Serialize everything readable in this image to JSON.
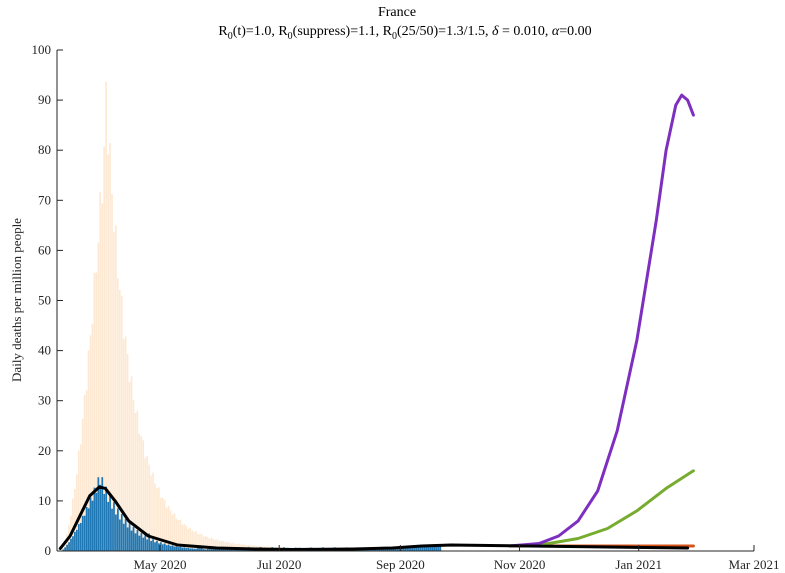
{
  "chart_data": {
    "type": "bar",
    "title": "France",
    "subtitle": {
      "r0t": "R",
      "r0t_sub": "0",
      "r0t_rest": "(t)=1.0,  ",
      "r0s": "R",
      "r0s_sub": "0",
      "r0s_rest": "(suppress)=1.1,  ",
      "r0f": "R",
      "r0f_sub": "0",
      "r0f_rest": "(25/50)=1.3/1.5,  ",
      "delta_sym": "δ",
      "delta_rest": " = 0.010, ",
      "alpha_sym": "α",
      "alpha_rest": "=0.00"
    },
    "ylabel": "Daily deaths per million people",
    "xlabel": "",
    "ylim": [
      0,
      100
    ],
    "xlim_days": [
      0,
      330
    ],
    "yticks": [
      "0",
      "10",
      "20",
      "30",
      "40",
      "50",
      "60",
      "70",
      "80",
      "90",
      "100"
    ],
    "xticks": [
      {
        "day": 51,
        "label": "May 2020"
      },
      {
        "day": 112,
        "label": "Jul 2020"
      },
      {
        "day": 174,
        "label": "Sep 2020"
      },
      {
        "day": 235,
        "label": "Nov 2020"
      },
      {
        "day": 296,
        "label": "Jan 2021"
      },
      {
        "day": 355,
        "label": "Mar 2021"
      }
    ],
    "colors": {
      "background_bars": "#fde9d3",
      "observed_bars": "#1f77b4",
      "fit": "#000000",
      "scenario_high": "#7e2fbf",
      "scenario_mid": "#77ac30",
      "scenario_low": "#d95319"
    },
    "background_bars_peak": {
      "day": 23,
      "value": 85
    },
    "observed_bars_peak": {
      "day": 20,
      "value": 14.5
    },
    "series": [
      {
        "type": "bar",
        "color_key": "background_bars",
        "start_day": 0,
        "end_day": 120
      },
      {
        "type": "bar",
        "color_key": "observed_bars",
        "start_day": 0,
        "end_day": 194
      },
      {
        "type": "line",
        "color_key": "fit",
        "points": [
          [
            0,
            0.5
          ],
          [
            5,
            3
          ],
          [
            10,
            7
          ],
          [
            15,
            11
          ],
          [
            20,
            12.8
          ],
          [
            23,
            12.5
          ],
          [
            28,
            10
          ],
          [
            35,
            6
          ],
          [
            45,
            3
          ],
          [
            60,
            1.2
          ],
          [
            80,
            0.6
          ],
          [
            100,
            0.4
          ],
          [
            120,
            0.3
          ],
          [
            150,
            0.4
          ],
          [
            170,
            0.6
          ],
          [
            185,
            1.0
          ],
          [
            200,
            1.2
          ],
          [
            220,
            1.1
          ],
          [
            240,
            1.0
          ],
          [
            260,
            0.9
          ],
          [
            280,
            0.8
          ],
          [
            300,
            0.7
          ],
          [
            321,
            0.6
          ]
        ]
      },
      {
        "type": "line",
        "color_key": "scenario_high",
        "points": [
          [
            230,
            1.0
          ],
          [
            245,
            1.5
          ],
          [
            255,
            3
          ],
          [
            265,
            6
          ],
          [
            275,
            12
          ],
          [
            285,
            24
          ],
          [
            295,
            42
          ],
          [
            305,
            66
          ],
          [
            310,
            80
          ],
          [
            315,
            89
          ],
          [
            318,
            91
          ],
          [
            321,
            90
          ],
          [
            324,
            87
          ]
        ]
      },
      {
        "type": "line",
        "color_key": "scenario_mid",
        "points": [
          [
            230,
            1.0
          ],
          [
            250,
            1.5
          ],
          [
            265,
            2.5
          ],
          [
            280,
            4.5
          ],
          [
            295,
            8
          ],
          [
            310,
            12.5
          ],
          [
            324,
            16
          ]
        ]
      },
      {
        "type": "line",
        "color_key": "scenario_low",
        "points": [
          [
            230,
            1.0
          ],
          [
            270,
            1.0
          ],
          [
            300,
            1.0
          ],
          [
            324,
            1.0
          ]
        ]
      }
    ]
  }
}
